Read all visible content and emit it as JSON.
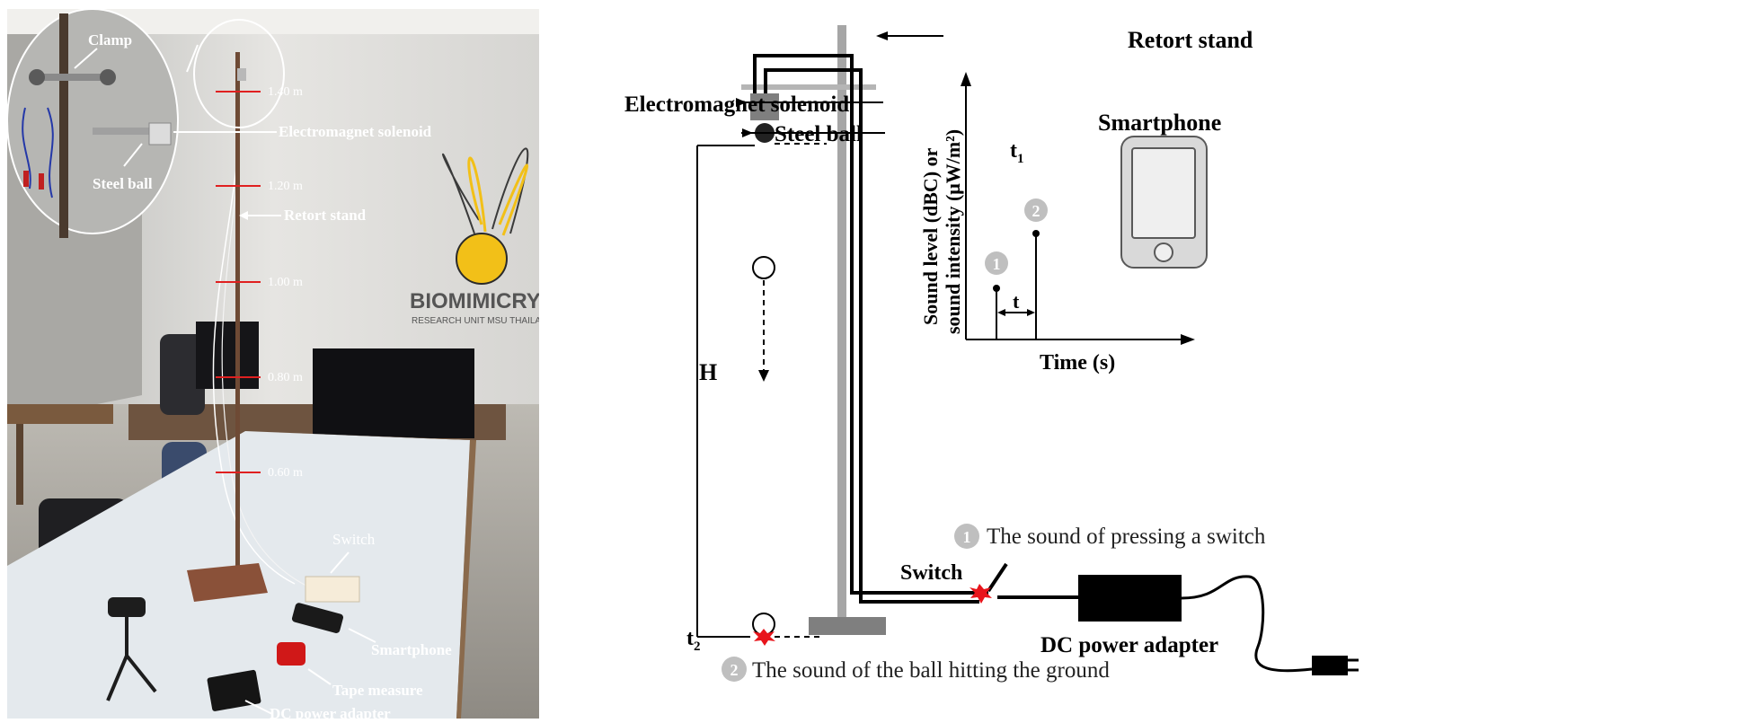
{
  "photo": {
    "labels": {
      "clamp": "Clamp",
      "solenoid": "Electromagnet solenoid",
      "steel_ball": "Steel ball",
      "retort_stand": "Retort stand",
      "switch": "Switch",
      "smartphone": "Smartphone",
      "tape_measure": "Tape measure",
      "dc_adapter": "DC power adapter"
    },
    "height_marks": [
      "1.40 m",
      "1.20 m",
      "1.00 m",
      "0.80 m",
      "0.60 m"
    ],
    "wall_logo": {
      "name": "BIOMIMICRY",
      "subtitle": "RESEARCH UNIT MSU THAILAND"
    }
  },
  "diagram": {
    "labels": {
      "retort_stand": "Retort stand",
      "solenoid": "Electromagnet solenoid",
      "steel_ball": "Steel ball",
      "t1": "t",
      "t1_sub": "1",
      "t2": "t",
      "t2_sub": "2",
      "height": "H",
      "switch": "Switch",
      "dc_adapter": "DC power adapter",
      "smartphone": "Smartphone"
    },
    "graph": {
      "ylabel_line1": "Sound level (dBC) or",
      "ylabel_line2": "sound intensity (μW/m²)",
      "xlabel": "Time (s)",
      "interval_label": "t",
      "marker1": "1",
      "marker2": "2"
    },
    "captions": {
      "c1_num": "1",
      "c1_text": "The sound of pressing a switch",
      "c2_num": "2",
      "c2_text": "The sound of the ball hitting the ground"
    }
  },
  "colors": {
    "stand_gray": "#a6a6a6",
    "solenoid_gray": "#7f7f7f",
    "marker_gray": "#bfbfbf",
    "burst_red": "#e8141b",
    "logo_yellow": "#f2c018",
    "mark_red": "#e02020"
  }
}
